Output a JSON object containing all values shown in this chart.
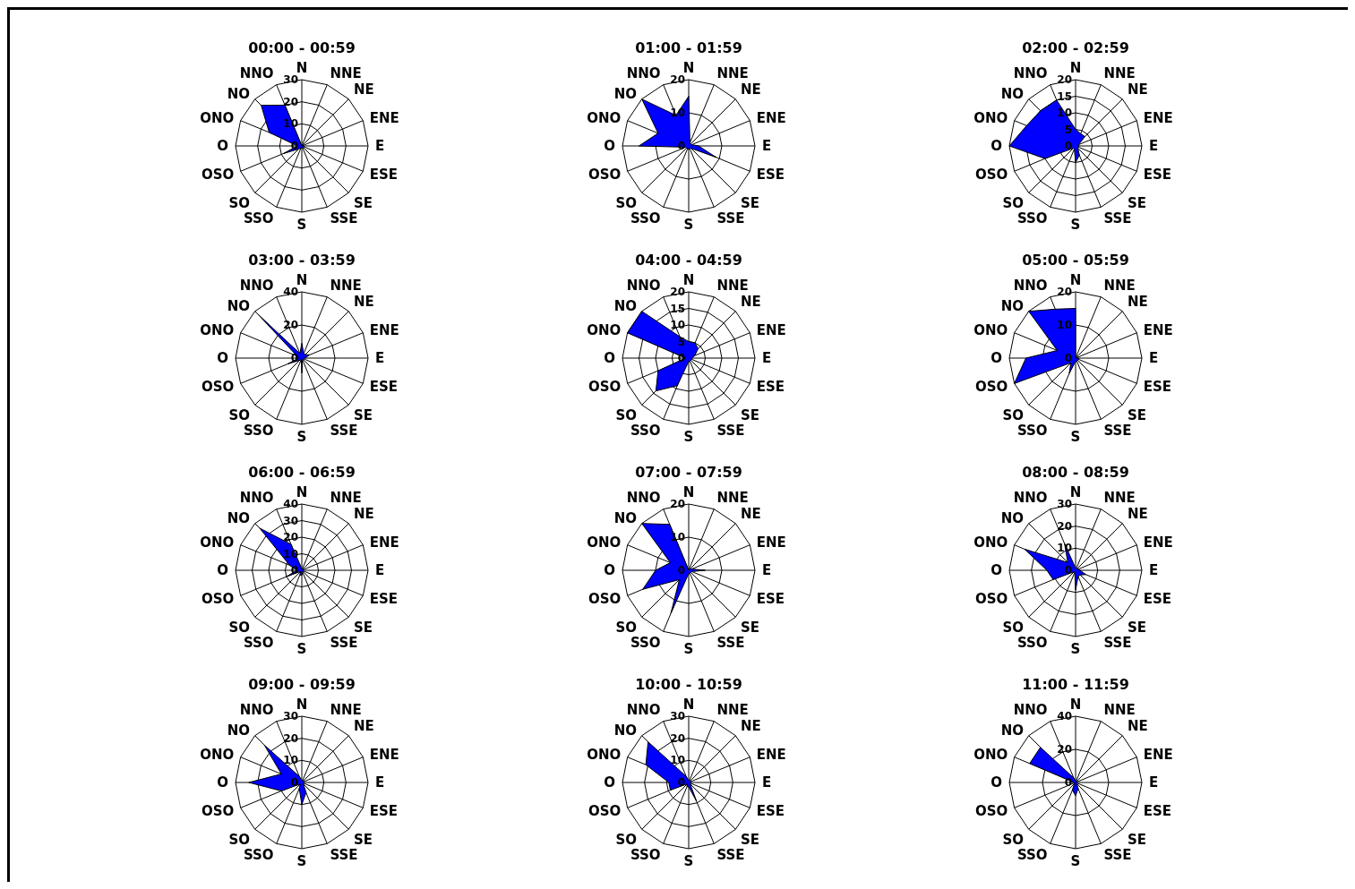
{
  "chart_data": [
    {
      "type": "radar",
      "title": "00:00 - 00:59",
      "categories": [
        "N",
        "NNE",
        "NE",
        "ENE",
        "E",
        "ESE",
        "SE",
        "SSE",
        "S",
        "SSO",
        "SO",
        "OSO",
        "O",
        "ONO",
        "NO",
        "NNO"
      ],
      "series": [
        {
          "color": "#0000ff",
          "values": [
            0,
            0,
            1,
            0,
            1,
            1,
            1,
            1,
            1,
            1,
            2,
            9,
            2,
            16,
            26,
            20
          ]
        }
      ],
      "ylim": [
        0,
        30
      ],
      "yticks": [
        0,
        10,
        20,
        30
      ],
      "grid": true
    },
    {
      "type": "radar",
      "title": "01:00 - 01:59",
      "categories": [
        "N",
        "NNE",
        "NE",
        "ENE",
        "E",
        "ESE",
        "SE",
        "SSE",
        "S",
        "SSO",
        "SO",
        "OSO",
        "O",
        "ONO",
        "NO",
        "NNO"
      ],
      "series": [
        {
          "color": "#0000ff",
          "values": [
            15,
            1,
            1,
            1,
            3,
            9,
            1,
            1,
            1,
            1,
            1,
            1,
            15,
            10,
            20,
            10
          ]
        }
      ],
      "ylim": [
        0,
        20
      ],
      "yticks": [
        0,
        10,
        20
      ],
      "grid": true
    },
    {
      "type": "radar",
      "title": "02:00 - 02:59",
      "categories": [
        "N",
        "NNE",
        "NE",
        "ENE",
        "E",
        "ESE",
        "SE",
        "SSE",
        "S",
        "SSO",
        "SO",
        "OSO",
        "O",
        "ONO",
        "NO",
        "NNO"
      ],
      "series": [
        {
          "color": "#0000ff",
          "values": [
            5,
            4,
            4,
            1,
            1,
            1,
            1,
            3,
            5,
            1,
            1,
            10,
            20,
            16,
            15,
            15
          ]
        }
      ],
      "ylim": [
        0,
        20
      ],
      "yticks": [
        0,
        5,
        10,
        15,
        20
      ],
      "grid": true
    },
    {
      "type": "radar",
      "title": "03:00 - 03:59",
      "categories": [
        "N",
        "NNE",
        "NE",
        "ENE",
        "E",
        "ESE",
        "SE",
        "SSE",
        "S",
        "SSO",
        "SO",
        "OSO",
        "O",
        "ONO",
        "NO",
        "NNO"
      ],
      "series": [
        {
          "color": "#0000ff",
          "values": [
            9,
            3,
            3,
            5,
            2,
            1,
            1,
            1,
            9,
            1,
            2,
            9,
            2,
            3,
            38,
            3
          ]
        }
      ],
      "ylim": [
        0,
        40
      ],
      "yticks": [
        0,
        20,
        40
      ],
      "grid": true
    },
    {
      "type": "radar",
      "title": "04:00 - 04:59",
      "categories": [
        "N",
        "NNE",
        "NE",
        "ENE",
        "E",
        "ESE",
        "SE",
        "SSE",
        "S",
        "SSO",
        "SO",
        "OSO",
        "O",
        "ONO",
        "NO",
        "NNO"
      ],
      "series": [
        {
          "color": "#0000ff",
          "values": [
            5,
            5,
            4,
            2,
            1,
            1,
            1,
            1,
            1,
            9,
            14,
            10,
            1,
            20,
            20,
            7
          ]
        }
      ],
      "ylim": [
        0,
        20
      ],
      "yticks": [
        0,
        5,
        10,
        15,
        20
      ],
      "grid": true
    },
    {
      "type": "radar",
      "title": "05:00 - 05:59",
      "categories": [
        "N",
        "NNE",
        "NE",
        "ENE",
        "E",
        "ESE",
        "SE",
        "SSE",
        "S",
        "SSO",
        "SO",
        "OSO",
        "O",
        "ONO",
        "NO",
        "NNO"
      ],
      "series": [
        {
          "color": "#0000ff",
          "values": [
            15,
            0,
            0,
            0,
            1,
            1,
            1,
            1,
            1,
            5,
            2,
            20,
            15,
            6,
            20,
            16
          ]
        }
      ],
      "ylim": [
        0,
        20
      ],
      "yticks": [
        0,
        10,
        20
      ],
      "grid": true
    },
    {
      "type": "radar",
      "title": "06:00 - 06:59",
      "categories": [
        "N",
        "NNE",
        "NE",
        "ENE",
        "E",
        "ESE",
        "SE",
        "SSE",
        "S",
        "SSO",
        "SO",
        "OSO",
        "O",
        "ONO",
        "NO",
        "NNO"
      ],
      "series": [
        {
          "color": "#0000ff",
          "values": [
            1,
            1,
            1,
            1,
            1,
            1,
            1,
            1,
            3,
            3,
            1,
            10,
            3,
            8,
            36,
            17
          ]
        }
      ],
      "ylim": [
        0,
        40
      ],
      "yticks": [
        0,
        10,
        20,
        30,
        40
      ],
      "grid": true
    },
    {
      "type": "radar",
      "title": "07:00 - 07:59",
      "categories": [
        "N",
        "NNE",
        "NE",
        "ENE",
        "E",
        "ESE",
        "SE",
        "SSE",
        "S",
        "SSO",
        "SO",
        "OSO",
        "O",
        "ONO",
        "NO",
        "NNO"
      ],
      "series": [
        {
          "color": "#0000ff",
          "values": [
            0,
            0,
            1,
            1,
            5,
            1,
            1,
            1,
            1,
            14,
            4,
            15,
            10,
            6,
            20,
            15
          ]
        }
      ],
      "ylim": [
        0,
        20
      ],
      "yticks": [
        0,
        10,
        20
      ],
      "grid": true
    },
    {
      "type": "radar",
      "title": "08:00 - 08:59",
      "categories": [
        "N",
        "NNE",
        "NE",
        "ENE",
        "E",
        "ESE",
        "SE",
        "SSE",
        "S",
        "SSO",
        "SO",
        "OSO",
        "O",
        "ONO",
        "NO",
        "NNO"
      ],
      "series": [
        {
          "color": "#0000ff",
          "values": [
            1,
            1,
            1,
            1,
            2,
            5,
            3,
            3,
            9,
            1,
            1,
            11,
            13,
            25,
            5,
            13
          ]
        }
      ],
      "ylim": [
        0,
        30
      ],
      "yticks": [
        0,
        10,
        20,
        30
      ],
      "grid": true
    },
    {
      "type": "radar",
      "title": "09:00 - 09:59",
      "categories": [
        "N",
        "NNE",
        "NE",
        "ENE",
        "E",
        "ESE",
        "SE",
        "SSE",
        "S",
        "SSO",
        "SO",
        "OSO",
        "O",
        "ONO",
        "NO",
        "NNO"
      ],
      "series": [
        {
          "color": "#0000ff",
          "values": [
            1,
            1,
            1,
            1,
            1,
            1,
            1,
            5,
            10,
            3,
            1,
            10,
            24,
            10,
            24,
            3
          ]
        }
      ],
      "ylim": [
        0,
        30
      ],
      "yticks": [
        0,
        10,
        20,
        30
      ],
      "grid": true
    },
    {
      "type": "radar",
      "title": "10:00 - 10:59",
      "categories": [
        "N",
        "NNE",
        "NE",
        "ENE",
        "E",
        "ESE",
        "SE",
        "SSE",
        "S",
        "SSO",
        "SO",
        "OSO",
        "O",
        "ONO",
        "NO",
        "NNO"
      ],
      "series": [
        {
          "color": "#0000ff",
          "values": [
            1,
            1,
            1,
            1,
            1,
            1,
            1,
            9,
            2,
            2,
            1,
            9,
            9,
            21,
            26,
            3
          ]
        }
      ],
      "ylim": [
        0,
        30
      ],
      "yticks": [
        0,
        10,
        20,
        30
      ],
      "grid": true
    },
    {
      "type": "radar",
      "title": "11:00 - 11:59",
      "categories": [
        "N",
        "NNE",
        "NE",
        "ENE",
        "E",
        "ESE",
        "SE",
        "SSE",
        "S",
        "SSO",
        "SO",
        "OSO",
        "O",
        "ONO",
        "NO",
        "NNO"
      ],
      "series": [
        {
          "color": "#0000ff",
          "values": [
            1,
            1,
            1,
            1,
            1,
            1,
            1,
            4,
            8,
            5,
            1,
            1,
            1,
            30,
            30,
            3
          ]
        }
      ],
      "ylim": [
        0,
        40
      ],
      "yticks": [
        0,
        20,
        40
      ],
      "grid": true
    }
  ]
}
